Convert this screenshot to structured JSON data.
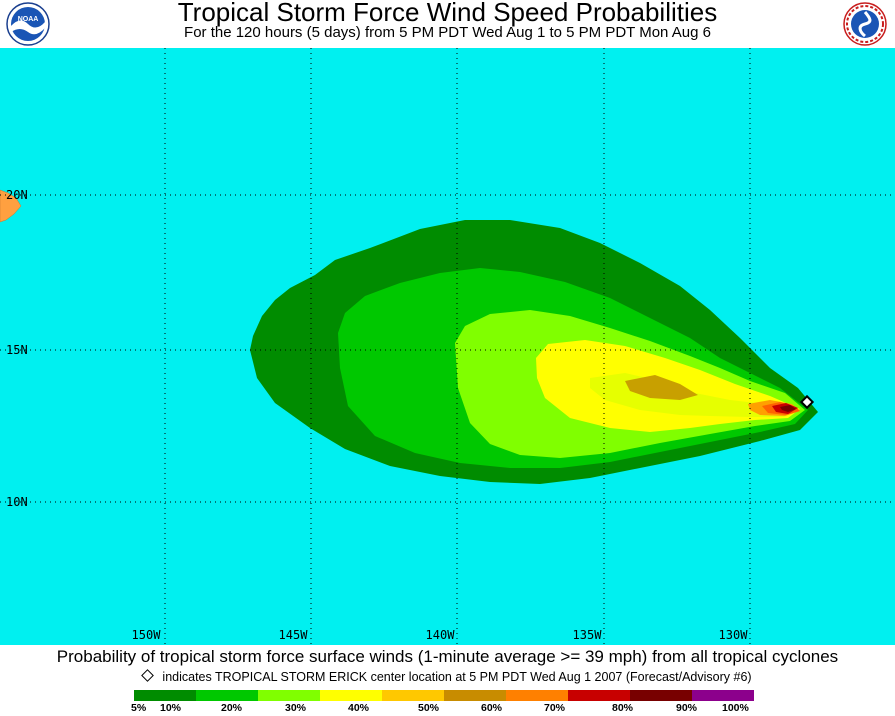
{
  "header": {
    "title": "Tropical Storm Force Wind Speed Probabilities",
    "subtitle": "For the 120 hours (5 days) from 5 PM PDT Wed Aug 1 to 5 PM PDT Mon Aug 6",
    "left_logo": "noaa-logo-icon",
    "left_logo_text": "NOAA",
    "right_logo": "national-weather-service-logo-icon"
  },
  "map": {
    "ocean_color": "#00f0f0",
    "land_color": "#ffa040",
    "latitude_labels": [
      "20N",
      "15N",
      "10N"
    ],
    "longitude_labels": [
      "150W",
      "145W",
      "140W",
      "135W",
      "130W"
    ],
    "storm_center_marker": "diamond-marker-icon"
  },
  "caption": "Probability of tropical storm force surface winds (1-minute average >= 39 mph) from all tropical cyclones",
  "storm_note": {
    "marker": "diamond-icon",
    "text": "indicates TROPICAL STORM ERICK center location at 5 PM PDT Wed Aug 1 2007 (Forecast/Advisory #6)"
  },
  "legend": {
    "labels": [
      "5%",
      "10%",
      "20%",
      "30%",
      "40%",
      "50%",
      "60%",
      "70%",
      "80%",
      "90%",
      "100%"
    ],
    "colors": [
      "#008c00",
      "#00c800",
      "#80ff00",
      "#e6ff00",
      "#ffff00",
      "#c88c00",
      "#ffa000",
      "#ff6400",
      "#c80000",
      "#780000",
      "#8c008c"
    ]
  }
}
